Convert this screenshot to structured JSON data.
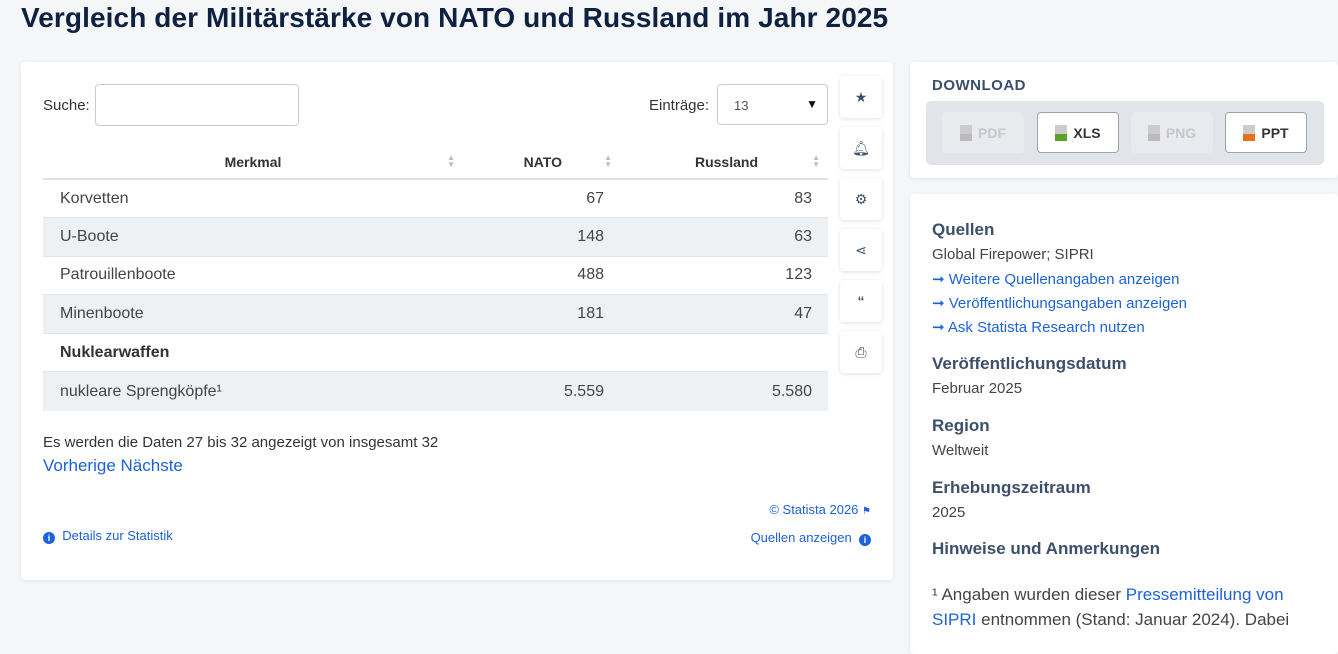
{
  "title": "Vergleich der Militärstärke von NATO und Russland im Jahr 2025",
  "search": {
    "label": "Suche:",
    "value": ""
  },
  "entries": {
    "label": "Einträge:",
    "value": "13"
  },
  "table": {
    "headers": [
      "Merkmal",
      "NATO",
      "Russland"
    ],
    "rows": [
      {
        "label": "Korvetten",
        "nato": "67",
        "russland": "83"
      },
      {
        "label": "U-Boote",
        "nato": "148",
        "russland": "63"
      },
      {
        "label": "Patrouillenboote",
        "nato": "488",
        "russland": "123"
      },
      {
        "label": "Minenboote",
        "nato": "181",
        "russland": "47"
      },
      {
        "label": "Nuklearwaffen",
        "nato": "",
        "russland": ""
      },
      {
        "label": "nukleare Sprengköpfe¹",
        "nato": "5.559",
        "russland": "5.580"
      }
    ]
  },
  "pagination": {
    "info": "Es werden die Daten 27 bis 32 angezeigt von insgesamt 32",
    "prev": "Vorherige",
    "next": "Nächste"
  },
  "footer": {
    "copyright": "© Statista 2026",
    "details": "Details zur Statistik",
    "sources": "Quellen anzeigen"
  },
  "side_icons": [
    "star-icon",
    "bell-icon",
    "gear-icon",
    "share-icon",
    "quote-icon",
    "print-icon"
  ],
  "download": {
    "title": "DOWNLOAD",
    "buttons": [
      {
        "label": "PDF",
        "enabled": false
      },
      {
        "label": "XLS",
        "enabled": true,
        "color": "#5aa02c"
      },
      {
        "label": "PNG",
        "enabled": false
      },
      {
        "label": "PPT",
        "enabled": true,
        "color": "#e8711c"
      }
    ]
  },
  "info": {
    "sources_title": "Quellen",
    "sources": "Global Firepower; SIPRI",
    "links": [
      "Weitere Quellenangaben anzeigen",
      "Veröffentlichungsangaben anzeigen",
      "Ask Statista Research nutzen"
    ],
    "pub_title": "Veröffentlichungsdatum",
    "pub": "Februar 2025",
    "region_title": "Region",
    "region": "Weltweit",
    "period_title": "Erhebungszeitraum",
    "period": "2025",
    "notes_title": "Hinweise und Anmerkungen",
    "note_pre": "¹ Angaben wurden dieser ",
    "note_link": "Pressemitteilung von SIPRI",
    "note_post": " entnommen (Stand: Januar 2024). Dabei"
  }
}
